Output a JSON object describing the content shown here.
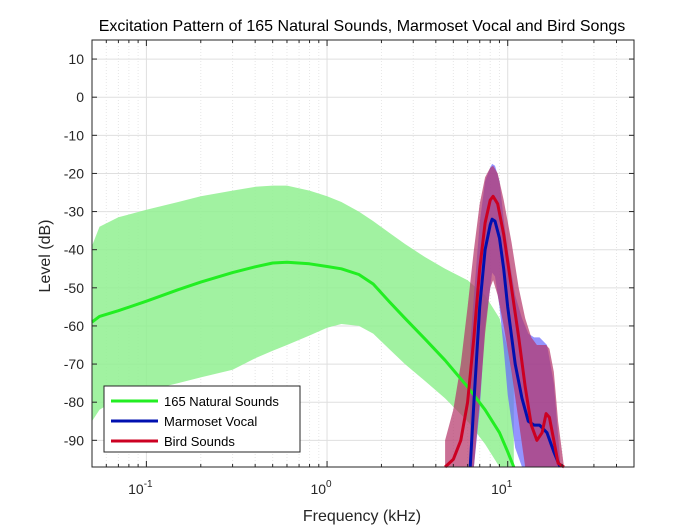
{
  "chart_data": {
    "type": "line",
    "title": "Excitation Pattern of 165 Natural Sounds, Marmoset Vocal and Bird Songs",
    "xlabel": "Frequency (kHz)",
    "ylabel": "Level (dB)",
    "xscale": "log",
    "xlim": [
      0.05,
      50
    ],
    "ylim": [
      -97,
      15
    ],
    "grid": true,
    "legend_position": "bottom-left",
    "y_ticks": [
      "10",
      "0",
      "-10",
      "-20",
      "-30",
      "-40",
      "-50",
      "-60",
      "-70",
      "-80",
      "-90"
    ],
    "x_ticks": [
      {
        "base": "10",
        "exp": "-1"
      },
      {
        "base": "10",
        "exp": "0"
      },
      {
        "base": "10",
        "exp": "1"
      }
    ],
    "series": [
      {
        "name": "165 Natural Sounds",
        "color": "#22ee22",
        "band_color": "#90f090",
        "x": [
          0.05,
          0.055,
          0.07,
          0.1,
          0.15,
          0.2,
          0.3,
          0.4,
          0.5,
          0.6,
          0.8,
          1.0,
          1.2,
          1.5,
          1.8,
          2.2,
          2.7,
          3.5,
          4.5,
          6.0,
          7.5,
          9.0,
          10.0,
          10.8
        ],
        "y": [
          -59,
          -57.5,
          -56,
          -53.5,
          -50.5,
          -48.5,
          -46,
          -44.5,
          -43.5,
          -43.3,
          -43.7,
          -44.4,
          -45,
          -46.5,
          -49,
          -53.5,
          -58,
          -63.5,
          -69,
          -76,
          -82,
          -88,
          -93,
          -97
        ],
        "upper": [
          -39,
          -34,
          -31.5,
          -29.5,
          -27.5,
          -26,
          -24.5,
          -23.5,
          -23.2,
          -23.2,
          -24.5,
          -26,
          -27.5,
          -30,
          -32.5,
          -35.5,
          -38.5,
          -42,
          -45,
          -48,
          -52,
          -58,
          -66,
          -74
        ],
        "lower": [
          -85,
          -82,
          -79,
          -77,
          -75,
          -73.5,
          -71.5,
          -68.5,
          -66.5,
          -65,
          -62.5,
          -60.5,
          -59.5,
          -60,
          -62,
          -66,
          -70,
          -74.5,
          -79,
          -85,
          -91,
          -97,
          -97,
          -97
        ]
      },
      {
        "name": "Marmoset Vocal",
        "color": "#0010b0",
        "band_color": "#6666ff",
        "x": [
          6.2,
          6.5,
          7.0,
          7.5,
          8.0,
          8.2,
          8.5,
          9.0,
          9.5,
          10.0,
          11.0,
          12.0,
          13.0,
          14.0,
          15.0,
          16.5,
          18.0,
          19.5
        ],
        "y": [
          -97,
          -80,
          -55,
          -40,
          -33.5,
          -32,
          -32.5,
          -37,
          -45,
          -55,
          -70,
          -79,
          -85,
          -86,
          -86,
          -88,
          -93,
          -97
        ],
        "upper": [
          -65,
          -52,
          -33,
          -22,
          -18.5,
          -17.5,
          -18,
          -22,
          -32,
          -40,
          -52,
          -58,
          -62,
          -63,
          -63,
          -65,
          -75,
          -95
        ],
        "lower": [
          -97,
          -97,
          -82,
          -60,
          -50,
          -46,
          -47,
          -55,
          -66,
          -78,
          -92,
          -97,
          -97,
          -97,
          -97,
          -97,
          -97,
          -97
        ]
      },
      {
        "name": "Bird Sounds",
        "color": "#cc0022",
        "band_color": "#b33368",
        "x": [
          4.5,
          5.0,
          5.5,
          6.0,
          6.5,
          7.0,
          7.5,
          8.0,
          8.3,
          8.8,
          9.5,
          10.5,
          11.5,
          12.5,
          13.5,
          14.5,
          15.5,
          16.3,
          17.0,
          18.0,
          19.0,
          20.5
        ],
        "y": [
          -97,
          -95,
          -90,
          -80,
          -63,
          -45,
          -33,
          -27,
          -26,
          -28,
          -36,
          -50,
          -63,
          -76,
          -86,
          -90,
          -88,
          -83,
          -84,
          -90,
          -96,
          -97
        ],
        "upper": [
          -90,
          -82,
          -70,
          -55,
          -40,
          -28,
          -21,
          -18.5,
          -18,
          -20,
          -27,
          -38,
          -50,
          -58,
          -63,
          -65,
          -65,
          -65,
          -66,
          -72,
          -85,
          -97
        ],
        "lower": [
          -97,
          -97,
          -97,
          -97,
          -97,
          -80,
          -62,
          -50,
          -48,
          -52,
          -60,
          -72,
          -85,
          -97,
          -97,
          -97,
          -97,
          -97,
          -97,
          -97,
          -97,
          -97
        ]
      }
    ]
  }
}
